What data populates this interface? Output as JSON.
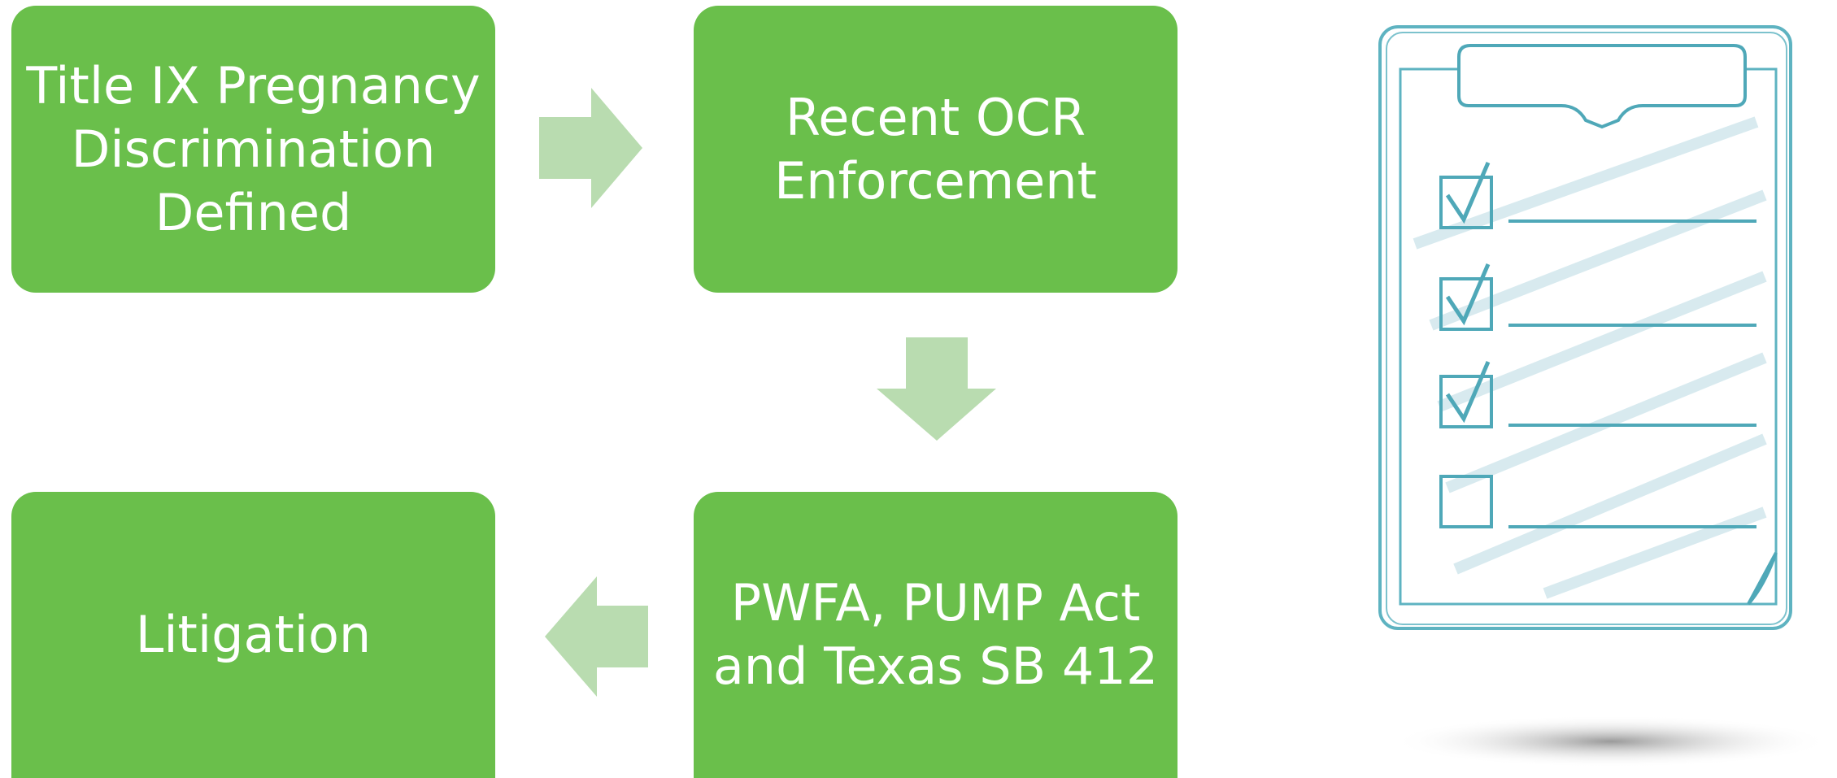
{
  "nodes": [
    {
      "lines": [
        "Title IX Pregnancy",
        "Discrimination",
        "Defined"
      ]
    },
    {
      "lines": [
        "Recent OCR",
        "Enforcement"
      ]
    },
    {
      "lines": [
        "PWFA, PUMP Act",
        "and Texas SB 412"
      ]
    },
    {
      "lines": [
        "Litigation"
      ]
    }
  ]
}
